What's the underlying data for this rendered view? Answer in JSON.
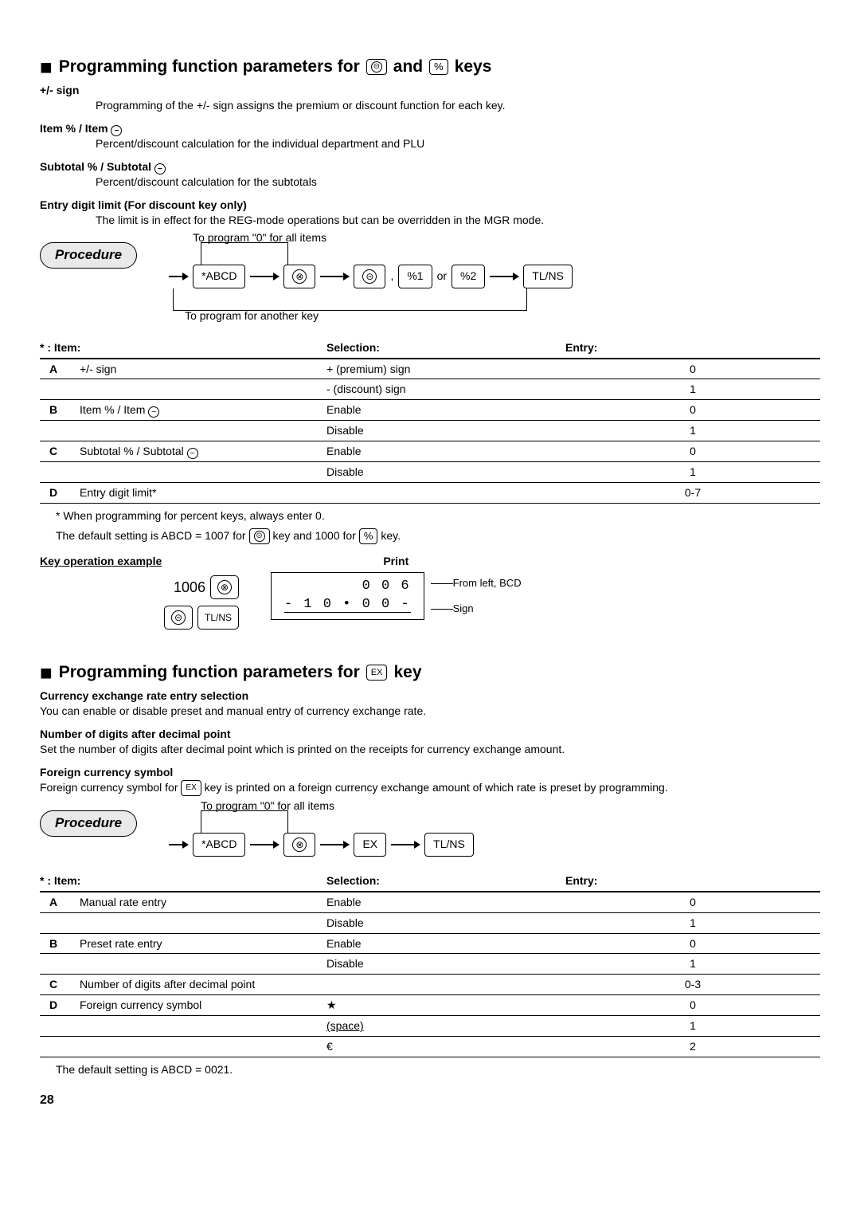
{
  "section1": {
    "title_pre": "Programming function parameters for",
    "title_post": "keys",
    "key1_icon": "⊝",
    "and": "and",
    "key2_icon": "%",
    "defs": {
      "d1_term": "+/- sign",
      "d1_body": "Programming of the +/- sign assigns the premium or discount function for each key.",
      "d2_term_a": "Item % / Item ",
      "d2_body": "Percent/discount calculation for the individual department and PLU",
      "d3_term_a": "Subtotal % / Subtotal ",
      "d3_body": "Percent/discount calculation for the subtotals",
      "d4_term": "Entry digit limit (For discount key only)",
      "d4_body": "The limit is in effect for the REG-mode operations but can be overridden in the MGR mode."
    },
    "procedure_label": "Procedure",
    "flow": {
      "cap_top": "To program \"0\" for all items",
      "cap_bot": "To program for another key",
      "abcd": "*ABCD",
      "multiply": "⊗",
      "minus": "⊝",
      "comma": ",",
      "pct1": "%1",
      "or": "or",
      "pct2": "%2",
      "tlns": "TL/NS"
    },
    "table": {
      "h_item": "* : Item:",
      "h_sel": "Selection:",
      "h_ent": "Entry:",
      "rows": [
        {
          "k": "A",
          "item": "+/- sign",
          "sel": "+ (premium) sign",
          "ent": "0"
        },
        {
          "k": "",
          "item": "",
          "sel": "- (discount) sign",
          "ent": "1"
        },
        {
          "k": "B",
          "item": "Item % / Item ⊝",
          "sel": "Enable",
          "ent": "0",
          "has_circ": true
        },
        {
          "k": "",
          "item": "",
          "sel": "Disable",
          "ent": "1"
        },
        {
          "k": "C",
          "item": "Subtotal % / Subtotal ⊝",
          "sel": "Enable",
          "ent": "0",
          "has_circ": true
        },
        {
          "k": "",
          "item": "",
          "sel": "Disable",
          "ent": "1"
        },
        {
          "k": "D",
          "item": "Entry digit limit*",
          "sel": "",
          "ent": "0-7"
        }
      ]
    },
    "note1": "* When programming for percent keys, always enter 0.",
    "note2_a": "The default setting is ABCD = 1007 for ",
    "note2_b": " key and 1000 for ",
    "note2_c": " key.",
    "koe": {
      "head_left": "Key operation example",
      "head_right": "Print",
      "num": "1006",
      "mul": "⊗",
      "minus": "⊝",
      "tlns": "TL/NS",
      "receipt_l1": "0 0 6",
      "receipt_l2": "-  1 0 • 0 0 -",
      "annot1": "From left, BCD",
      "annot2": "Sign"
    }
  },
  "section2": {
    "title_pre": "Programming function parameters for",
    "key_label": "EX",
    "title_post": "key",
    "defs": {
      "d1_term": "Currency exchange rate entry selection",
      "d1_body": "You can enable or disable preset and manual entry of currency exchange rate.",
      "d2_term": "Number of digits after decimal point",
      "d2_body": "Set the number of digits after decimal point which is printed on the receipts for currency exchange amount.",
      "d3_term": "Foreign currency symbol",
      "d3_body_a": "Foreign currency symbol for ",
      "d3_body_b": " key is printed on a foreign currency exchange amount of which rate is preset by programming."
    },
    "procedure_label": "Procedure",
    "flow": {
      "cap_top": "To program \"0\" for all items",
      "abcd": "*ABCD",
      "multiply": "⊗",
      "ex": "EX",
      "tlns": "TL/NS"
    },
    "table": {
      "h_item": "* : Item:",
      "h_sel": "Selection:",
      "h_ent": "Entry:",
      "rows": [
        {
          "k": "A",
          "item": "Manual rate entry",
          "sel": "Enable",
          "ent": "0"
        },
        {
          "k": "",
          "item": "",
          "sel": "Disable",
          "ent": "1"
        },
        {
          "k": "B",
          "item": "Preset rate entry",
          "sel": "Enable",
          "ent": "0"
        },
        {
          "k": "",
          "item": "",
          "sel": "Disable",
          "ent": "1"
        },
        {
          "k": "C",
          "item": "Number of digits after decimal point",
          "sel": "",
          "ent": "0-3"
        },
        {
          "k": "D",
          "item": "Foreign currency symbol",
          "sel": "★",
          "ent": "0"
        },
        {
          "k": "",
          "item": "",
          "sel": "(space)",
          "ent": "1",
          "under": true
        },
        {
          "k": "",
          "item": "",
          "sel": "€",
          "ent": "2"
        }
      ]
    },
    "note": "The default setting is ABCD = 0021."
  },
  "page_number": "28"
}
